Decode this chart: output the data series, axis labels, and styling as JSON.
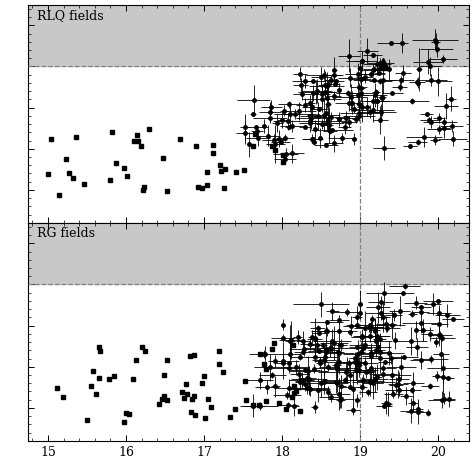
{
  "title": "",
  "xlabel": "",
  "ylabel": "",
  "xlim": [
    14.75,
    20.4
  ],
  "ylim": [
    -1.8,
    3.5
  ],
  "xticks": [
    15,
    16,
    17,
    18,
    19,
    20
  ],
  "dashed_line_y": 2.0,
  "dashed_line_x": 19.0,
  "label_top": "RLQ fields",
  "label_bot": "RG fields",
  "bg_gray": "#c8c8c8",
  "point_color": "black"
}
